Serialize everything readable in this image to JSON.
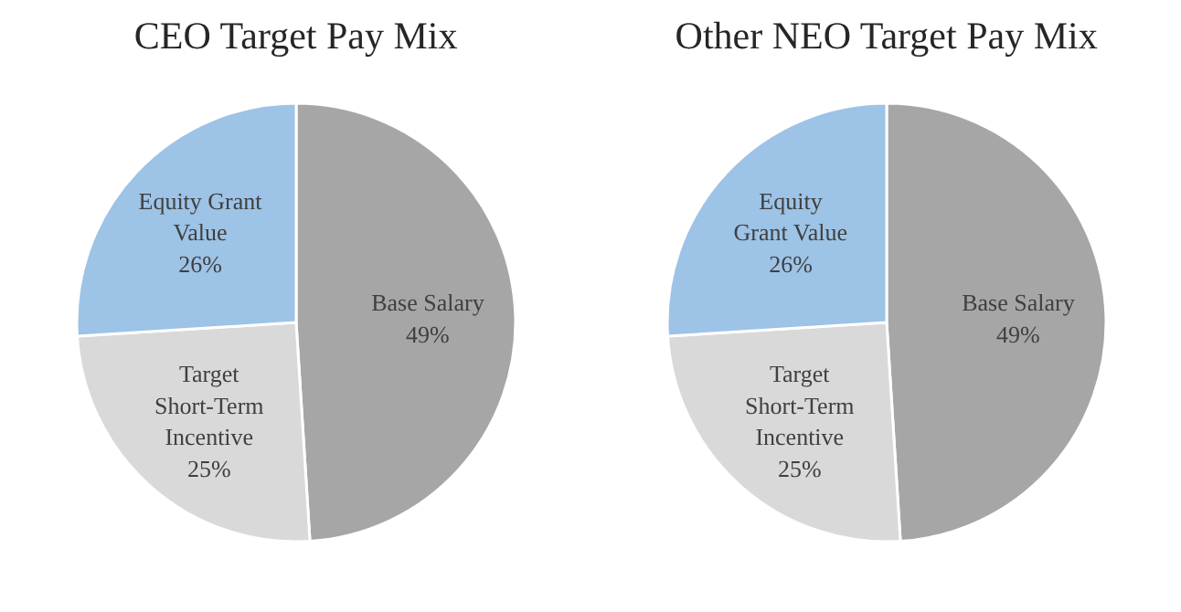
{
  "chart_data": [
    {
      "type": "pie",
      "title": "CEO Target Pay Mix",
      "categories": [
        "Base Salary",
        "Target\nShort-Term\nIncentive",
        "Equity Grant\nValue"
      ],
      "values": [
        49,
        25,
        26
      ],
      "value_labels": [
        "49%",
        "25%",
        "26%"
      ],
      "colors": [
        "#a6a6a6",
        "#d9d9d9",
        "#9dc3e6"
      ]
    },
    {
      "type": "pie",
      "title": "Other NEO Target Pay Mix",
      "categories": [
        "Base Salary",
        "Target\nShort-Term\nIncentive",
        "Equity\nGrant Value"
      ],
      "values": [
        49,
        25,
        26
      ],
      "value_labels": [
        "49%",
        "25%",
        "26%"
      ],
      "colors": [
        "#a6a6a6",
        "#d9d9d9",
        "#9dc3e6"
      ]
    }
  ]
}
